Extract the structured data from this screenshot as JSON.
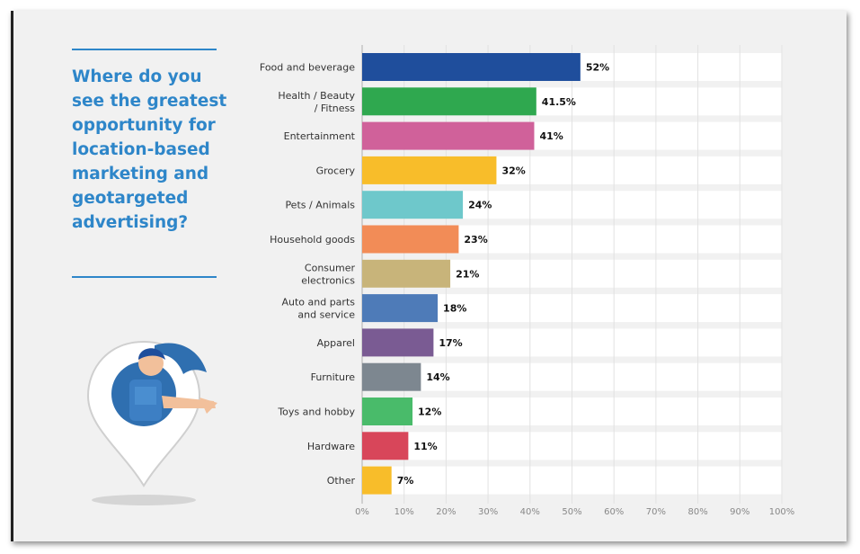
{
  "title": "Where do you see the greatest opportunity for location-based marketing and geotargeted advertising?",
  "chart_data": {
    "type": "bar",
    "orientation": "horizontal",
    "categories": [
      "Food and beverage",
      "Health / Beauty / Fitness",
      "Entertainment",
      "Grocery",
      "Pets / Animals",
      "Household goods",
      "Consumer electronics",
      "Auto and parts and service",
      "Apparel",
      "Furniture",
      "Toys and hobby",
      "Hardware",
      "Other"
    ],
    "values": [
      52,
      41.5,
      41,
      32,
      24,
      23,
      21,
      18,
      17,
      14,
      12,
      11,
      7
    ],
    "value_labels": [
      "52%",
      "41.5%",
      "41%",
      "32%",
      "24%",
      "23%",
      "21%",
      "18%",
      "17%",
      "14%",
      "12%",
      "11%",
      "7%"
    ],
    "colors": [
      "#1f4e9c",
      "#2fa84f",
      "#d0619a",
      "#f8bd2a",
      "#6ec8cb",
      "#f28c57",
      "#c8b47a",
      "#4e7bb8",
      "#7a5b93",
      "#7d8790",
      "#49bb6a",
      "#d8465a",
      "#f8bd2a"
    ],
    "xticks": [
      "0%",
      "10%",
      "20%",
      "30%",
      "40%",
      "50%",
      "60%",
      "70%",
      "80%",
      "90%",
      "100%"
    ],
    "xlim": [
      0,
      100
    ],
    "grid": true
  },
  "illustration": {
    "icon": "map-pin-woman-pointing"
  }
}
